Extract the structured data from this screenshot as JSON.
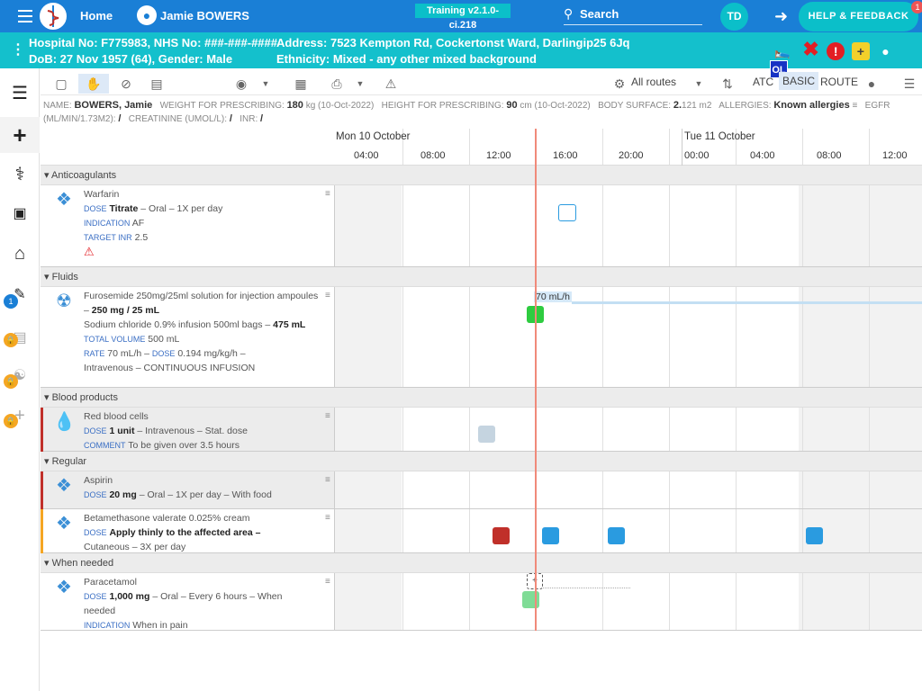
{
  "topbar": {
    "home": "Home",
    "patient": "Jamie BOWERS",
    "training": "Training v2.1.0-ci.218",
    "search": "Search",
    "user_initials": "TD",
    "help": "HELP & FEEDBACK",
    "help_badge": "1"
  },
  "banner": {
    "line1": "Hospital No: F775983, NHS No: ###-###-####",
    "line2": "DoB: 27 Nov 1957 (64), Gender: Male",
    "line3": "Address: 7523 Kempton Rd, Cockertonst Ward, Darlingip25 6Jq",
    "line4": "Ethnicity: Mixed - any other mixed background",
    "ol": "OL"
  },
  "toolbar": {
    "routes": "All routes",
    "atc": "ATC",
    "basic": "BASIC",
    "route": "ROUTE"
  },
  "info": {
    "name_l": "NAME:",
    "name": "BOWERS, Jamie",
    "weight_l": "WEIGHT FOR PRESCRIBING:",
    "weight": "180",
    "weight_s": "kg (10-Oct-2022)",
    "height_l": "HEIGHT FOR PRESCRIBING:",
    "height": "90",
    "height_s": "cm (10-Oct-2022)",
    "bs_l": "BODY SURFACE:",
    "bs": "2.",
    "bs_s": "121 m2",
    "allergy_l": "ALLERGIES:",
    "allergy": "Known allergies",
    "egfr_l": "EGFR",
    "egfr_u": "(ML/MIN/1.73M2):",
    "egfr_v": "/",
    "creat_l": "CREATININE (UMOL/L):",
    "creat_v": "/",
    "inr_l": "INR:",
    "inr_v": "/"
  },
  "timeline": {
    "day1": "Mon 10 October",
    "day2": "Tue 11 October",
    "times": [
      "04:00",
      "08:00",
      "12:00",
      "16:00",
      "20:00",
      "00:00",
      "04:00",
      "08:00",
      "12:00"
    ]
  },
  "sections": {
    "anticoag": "Anticoagulants",
    "fluids": "Fluids",
    "blood": "Blood products",
    "regular": "Regular",
    "whenneeded": "When needed"
  },
  "meds": {
    "warfarin": {
      "name": "Warfarin",
      "dose_k": "DOSE",
      "dose": "Titrate",
      "dose_r": "– Oral – 1X per day",
      "ind_k": "INDICATION",
      "ind": "AF",
      "inr_k": "TARGET INR",
      "inr": "2.5"
    },
    "furo": {
      "name": "Furosemide 250mg/25ml solution for injection ampoules –",
      "name_b": "250 mg / 25 mL",
      "l2": "Sodium chloride 0.9% infusion 500ml bags –",
      "l2_b": "475 mL",
      "tv_k": "TOTAL VOLUME",
      "tv": "500 mL",
      "rate_k": "RATE",
      "rate": "70 mL/h –",
      "dose_k": "DOSE",
      "dose": "0.194 mg/kg/h –",
      "route": "Intravenous – CONTINUOUS INFUSION",
      "rate_label": "70 mL/h"
    },
    "rbc": {
      "name": "Red blood cells",
      "dose_k": "DOSE",
      "dose": "1 unit",
      "dose_r": "– Intravenous – Stat. dose",
      "c_k": "COMMENT",
      "c": "To be given over 3.5 hours"
    },
    "aspirin": {
      "name": "Aspirin",
      "dose_k": "DOSE",
      "dose": "20 mg",
      "dose_r": "– Oral – 1X per day – With food"
    },
    "beta": {
      "name": "Betamethasone valerate 0.025% cream",
      "dose_k": "DOSE",
      "dose": "Apply thinly to the affected area –",
      "route": "Cutaneous – 3X per day"
    },
    "para": {
      "name": "Paracetamol",
      "dose_k": "DOSE",
      "dose": "1,000 mg",
      "dose_r": "– Oral – Every 6 hours – When",
      "dose_r2": "needed",
      "ind_k": "INDICATION",
      "ind": "When in pain"
    }
  },
  "leftnav_badge": "1",
  "colors": {
    "topbar": "#1a7fd6",
    "banner": "#14c0cc",
    "accent": "#0bbfc9",
    "now": "#f08a7a",
    "green": "#2ecc40",
    "blue": "#2a9be0",
    "red": "#c0302a"
  }
}
